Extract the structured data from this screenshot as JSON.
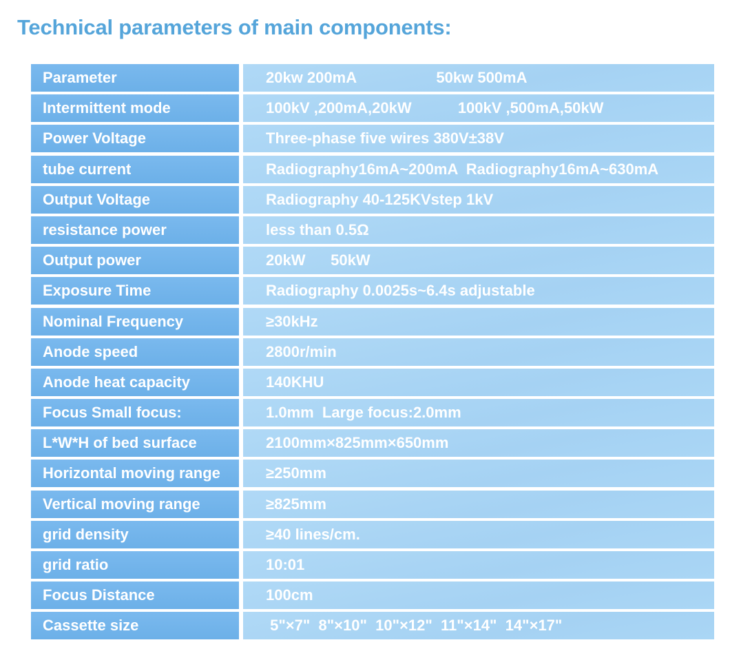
{
  "title": "Technical parameters of main components:",
  "colors": {
    "title_text": "#55a5da",
    "label_cell": "#6fb3e9",
    "value_cell": "#a8d5f4",
    "cell_text": "#ffffff",
    "background": "#ffffff"
  },
  "table": {
    "rows": [
      {
        "label": "Parameter",
        "value": "20kw 200mA                   50kw 500mA"
      },
      {
        "label": "Intermittent mode",
        "value": "100kV ,200mA,20kW           100kV ,500mA,50kW"
      },
      {
        "label": "Power Voltage",
        "value": "Three-phase five wires 380V±38V"
      },
      {
        "label": "tube current",
        "value": "Radiography16mA~200mA  Radiography16mA~630mA"
      },
      {
        "label": "Output Voltage",
        "value": "Radiography 40-125KVstep 1kV"
      },
      {
        "label": "resistance power",
        "value": "less than 0.5Ω"
      },
      {
        "label": "Output power",
        "value": "20kW      50kW"
      },
      {
        "label": "Exposure Time",
        "value": "Radiography 0.0025s~6.4s adjustable"
      },
      {
        "label": "Nominal Frequency",
        "value": "≥30kHz"
      },
      {
        "label": "Anode speed",
        "value": "2800r/min"
      },
      {
        "label": "Anode heat capacity",
        "value": "140KHU"
      },
      {
        "label": "Focus Small focus:",
        "value": "1.0mm  Large focus:2.0mm"
      },
      {
        "label": "L*W*H of bed surface",
        "value": "2100mm×825mm×650mm"
      },
      {
        "label": "Horizontal moving range",
        "value": "≥250mm"
      },
      {
        "label": "Vertical moving range",
        "value": "≥825mm"
      },
      {
        "label": "grid density",
        "value": "≥40 lines/cm."
      },
      {
        "label": "grid ratio",
        "value": "10:01"
      },
      {
        "label": "Focus Distance",
        "value": "100cm"
      },
      {
        "label": "Cassette size",
        "value": " 5\"×7\"  8\"×10\"  10\"×12\"  11\"×14\"  14\"×17\""
      }
    ]
  }
}
